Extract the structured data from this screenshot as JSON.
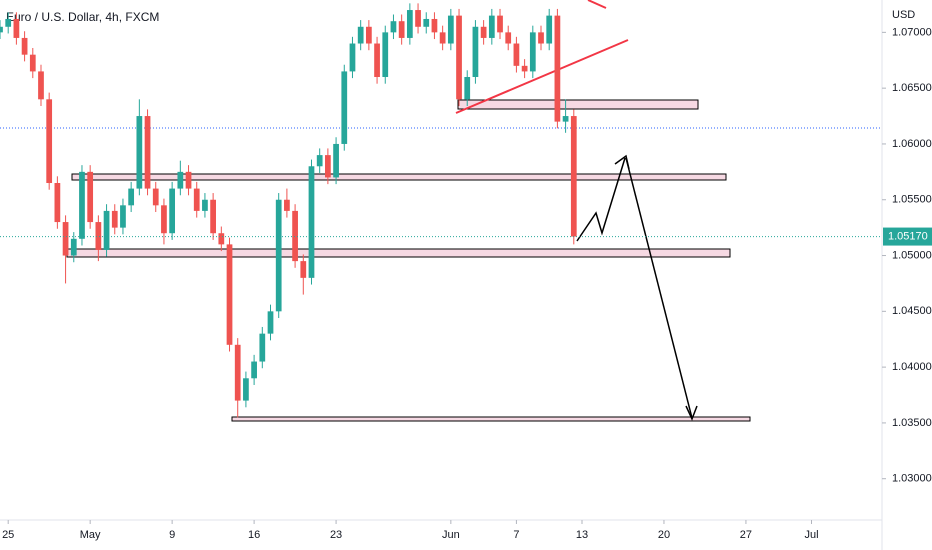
{
  "chart_data": {
    "type": "candlestick",
    "title": "Euro / U.S. Dollar, 4h, FXCM",
    "currency": "USD",
    "up_color": "#26a69a",
    "down_color": "#ef5350",
    "x": [
      -0.5,
      0,
      0.5,
      1,
      1.5,
      2,
      2.5,
      3,
      3.5,
      4,
      4.5,
      5,
      5.5,
      6,
      6.5,
      7,
      7.5,
      8,
      8.5,
      9,
      9.5,
      10,
      10.5,
      11,
      11.5,
      12,
      12.5,
      13,
      13.5,
      14,
      14.5,
      15,
      15.5,
      16,
      16.5,
      17,
      17.5,
      18,
      18.5,
      19,
      19.5,
      20,
      20.5,
      21,
      21.5,
      22,
      22.5,
      23,
      23.5,
      24,
      24.5,
      25,
      25.5,
      26,
      26.5,
      27,
      27.5,
      28,
      28.5,
      29,
      29.5,
      30,
      30.5,
      31,
      31.5,
      32,
      32.5,
      33,
      33.5,
      34,
      34.5
    ],
    "open": [
      1.07,
      1.0705,
      1.0712,
      1.0695,
      1.068,
      1.0665,
      1.064,
      1.0565,
      1.053,
      1.05,
      1.0515,
      1.0575,
      1.053,
      1.0505,
      1.054,
      1.0525,
      1.0545,
      1.056,
      1.0625,
      1.056,
      1.0545,
      1.052,
      1.056,
      1.0575,
      1.056,
      1.054,
      1.055,
      1.052,
      1.051,
      1.042,
      1.037,
      1.039,
      1.0405,
      1.043,
      1.045,
      1.055,
      1.054,
      1.0495,
      1.048,
      1.058,
      1.059,
      1.057,
      1.06,
      1.0665,
      1.069,
      1.0705,
      1.069,
      1.066,
      1.07,
      1.071,
      1.0695,
      1.072,
      1.0705,
      1.0712,
      1.07,
      1.069,
      1.0715,
      1.064,
      1.066,
      1.0705,
      1.0695,
      1.0715,
      1.07,
      1.069,
      1.067,
      1.0665,
      1.07,
      1.069,
      1.0715,
      1.062,
      1.0625
    ],
    "high": [
      1.0711,
      1.0718,
      1.0718,
      1.0701,
      1.0686,
      1.0671,
      1.0646,
      1.0571,
      1.0536,
      1.0521,
      1.0581,
      1.0581,
      1.0536,
      1.0546,
      1.0546,
      1.0551,
      1.0566,
      1.064,
      1.0631,
      1.0566,
      1.0551,
      1.0566,
      1.0585,
      1.0581,
      1.0566,
      1.0556,
      1.0556,
      1.0526,
      1.0516,
      1.0426,
      1.0396,
      1.0411,
      1.0436,
      1.0456,
      1.0556,
      1.056,
      1.0546,
      1.0501,
      1.0586,
      1.0596,
      1.0596,
      1.0606,
      1.0671,
      1.0696,
      1.0711,
      1.0711,
      1.0696,
      1.0706,
      1.0716,
      1.0716,
      1.0726,
      1.0726,
      1.0718,
      1.0718,
      1.0706,
      1.0721,
      1.0721,
      1.0666,
      1.0711,
      1.0711,
      1.0721,
      1.0721,
      1.0706,
      1.0696,
      1.0676,
      1.0706,
      1.0706,
      1.0721,
      1.0721,
      1.064,
      1.0631
    ],
    "low": [
      1.0694,
      1.0699,
      1.0689,
      1.0674,
      1.0659,
      1.0634,
      1.0559,
      1.0524,
      1.0475,
      1.0494,
      1.0509,
      1.0524,
      1.0495,
      1.0499,
      1.0519,
      1.0519,
      1.0539,
      1.0554,
      1.0554,
      1.0539,
      1.051,
      1.0514,
      1.0554,
      1.0554,
      1.0534,
      1.0534,
      1.0514,
      1.0504,
      1.0414,
      1.0355,
      1.0364,
      1.0384,
      1.0399,
      1.0424,
      1.0444,
      1.0534,
      1.0489,
      1.0465,
      1.0474,
      1.0574,
      1.0564,
      1.0564,
      1.0594,
      1.0659,
      1.0684,
      1.0684,
      1.0654,
      1.0654,
      1.0694,
      1.0689,
      1.0689,
      1.0699,
      1.0699,
      1.0694,
      1.0684,
      1.0684,
      1.0634,
      1.0634,
      1.0654,
      1.0689,
      1.0689,
      1.0694,
      1.0684,
      1.0664,
      1.0659,
      1.0659,
      1.0684,
      1.0684,
      1.0614,
      1.061,
      1.051
    ],
    "close": [
      1.0705,
      1.0712,
      1.0695,
      1.068,
      1.0665,
      1.064,
      1.0565,
      1.053,
      1.05,
      1.0515,
      1.0575,
      1.053,
      1.0505,
      1.054,
      1.0525,
      1.0545,
      1.056,
      1.0625,
      1.056,
      1.0545,
      1.052,
      1.056,
      1.0575,
      1.056,
      1.054,
      1.055,
      1.052,
      1.051,
      1.042,
      1.037,
      1.039,
      1.0405,
      1.043,
      1.045,
      1.055,
      1.054,
      1.0495,
      1.048,
      1.058,
      1.059,
      1.057,
      1.06,
      1.0665,
      1.069,
      1.0705,
      1.069,
      1.066,
      1.07,
      1.071,
      1.0695,
      1.072,
      1.0705,
      1.0712,
      1.07,
      1.069,
      1.0715,
      1.064,
      1.066,
      1.0705,
      1.0695,
      1.0715,
      1.07,
      1.069,
      1.067,
      1.0665,
      1.07,
      1.069,
      1.0715,
      1.062,
      1.0625,
      1.0517
    ],
    "xlim": [
      -0.5,
      53.3
    ],
    "xticks": [
      {
        "value": 0,
        "label": "25"
      },
      {
        "value": 5,
        "label": "May"
      },
      {
        "value": 10,
        "label": "9"
      },
      {
        "value": 15,
        "label": "16"
      },
      {
        "value": 20,
        "label": "23"
      },
      {
        "value": 27,
        "label": "Jun"
      },
      {
        "value": 31,
        "label": "7"
      },
      {
        "value": 35,
        "label": "13"
      },
      {
        "value": 40,
        "label": "20"
      },
      {
        "value": 45,
        "label": "27"
      },
      {
        "value": 49,
        "label": "Jul"
      }
    ],
    "ylim": [
      1.0263,
      1.0729
    ],
    "yticks": [
      {
        "value": 1.03,
        "label": "1.03000"
      },
      {
        "value": 1.035,
        "label": "1.03500"
      },
      {
        "value": 1.04,
        "label": "1.04000"
      },
      {
        "value": 1.045,
        "label": "1.04500"
      },
      {
        "value": 1.05,
        "label": "1.05000"
      },
      {
        "value": 1.055,
        "label": "1.05500"
      },
      {
        "value": 1.06,
        "label": "1.06000"
      },
      {
        "value": 1.065,
        "label": "1.06500"
      },
      {
        "value": 1.07,
        "label": "1.07000"
      }
    ],
    "last_price": {
      "value": 1.0517,
      "label": "1.05170"
    }
  }
}
